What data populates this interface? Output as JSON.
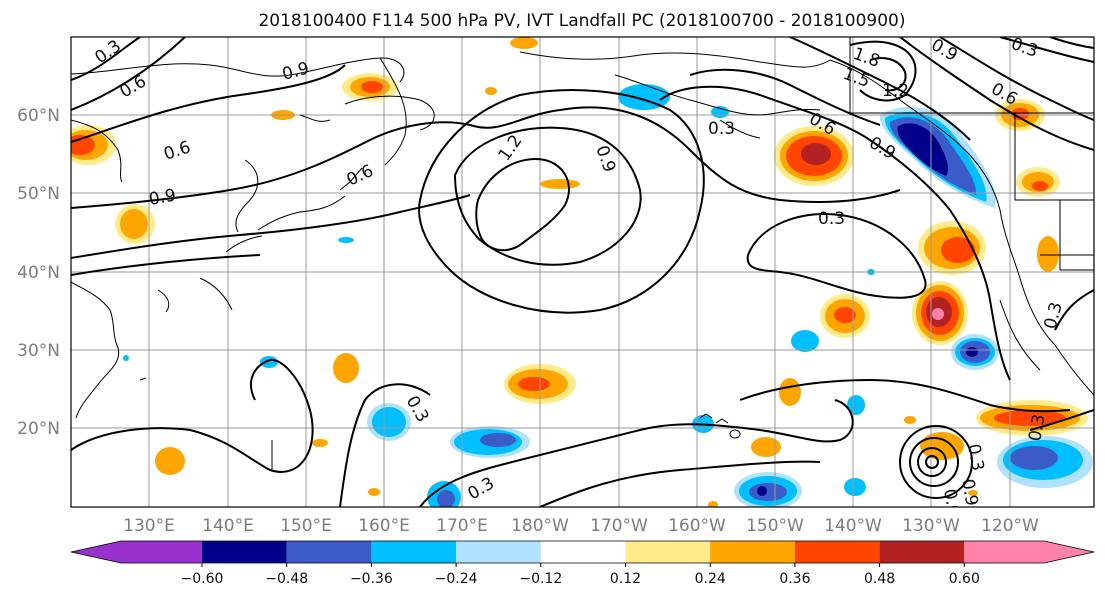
{
  "title": "2018100400 F114 500 hPa PV, IVT Landfall PC (2018100700 - 2018100900)",
  "lat_labels": [
    "60°N",
    "50°N",
    "40°N",
    "30°N",
    "20°N"
  ],
  "lon_labels": [
    "130°E",
    "140°E",
    "150°E",
    "160°E",
    "170°E",
    "180°W",
    "170°W",
    "160°W",
    "150°W",
    "140°W",
    "130°W",
    "120°W"
  ],
  "map_extent": {
    "lon_min": 120,
    "lon_max": 251,
    "lat_min": 10,
    "lat_max": 70
  },
  "gridlines": true,
  "colorbar": {
    "ticks": [
      "−0.60",
      "−0.48",
      "−0.36",
      "−0.24",
      "−0.12",
      "0.12",
      "0.24",
      "0.36",
      "0.48",
      "0.60"
    ],
    "levels": [
      -0.6,
      -0.48,
      -0.36,
      -0.24,
      -0.12,
      0.12,
      0.24,
      0.36,
      0.48,
      0.6
    ],
    "colors": [
      "#9932cc",
      "#00008b",
      "#3a5bc8",
      "#00bfff",
      "#b0e2ff",
      "#ffffff",
      "#ffeb8a",
      "#ffa500",
      "#ff4500",
      "#b22222",
      "#ff82ab"
    ],
    "extend": "both"
  },
  "contour_labels": [
    "0.3",
    "0.6",
    "0.9",
    "0.6",
    "0.6",
    "0.9",
    "1.2",
    "0.9",
    "0.3",
    "0.6",
    "0.9",
    "1.2",
    "1.5",
    "1.8",
    "0.9",
    "0.6",
    "0.3",
    "0.3",
    "0.3",
    "0.3",
    "0.3",
    "0.9",
    "0.6",
    "0.3",
    "0.3"
  ]
}
